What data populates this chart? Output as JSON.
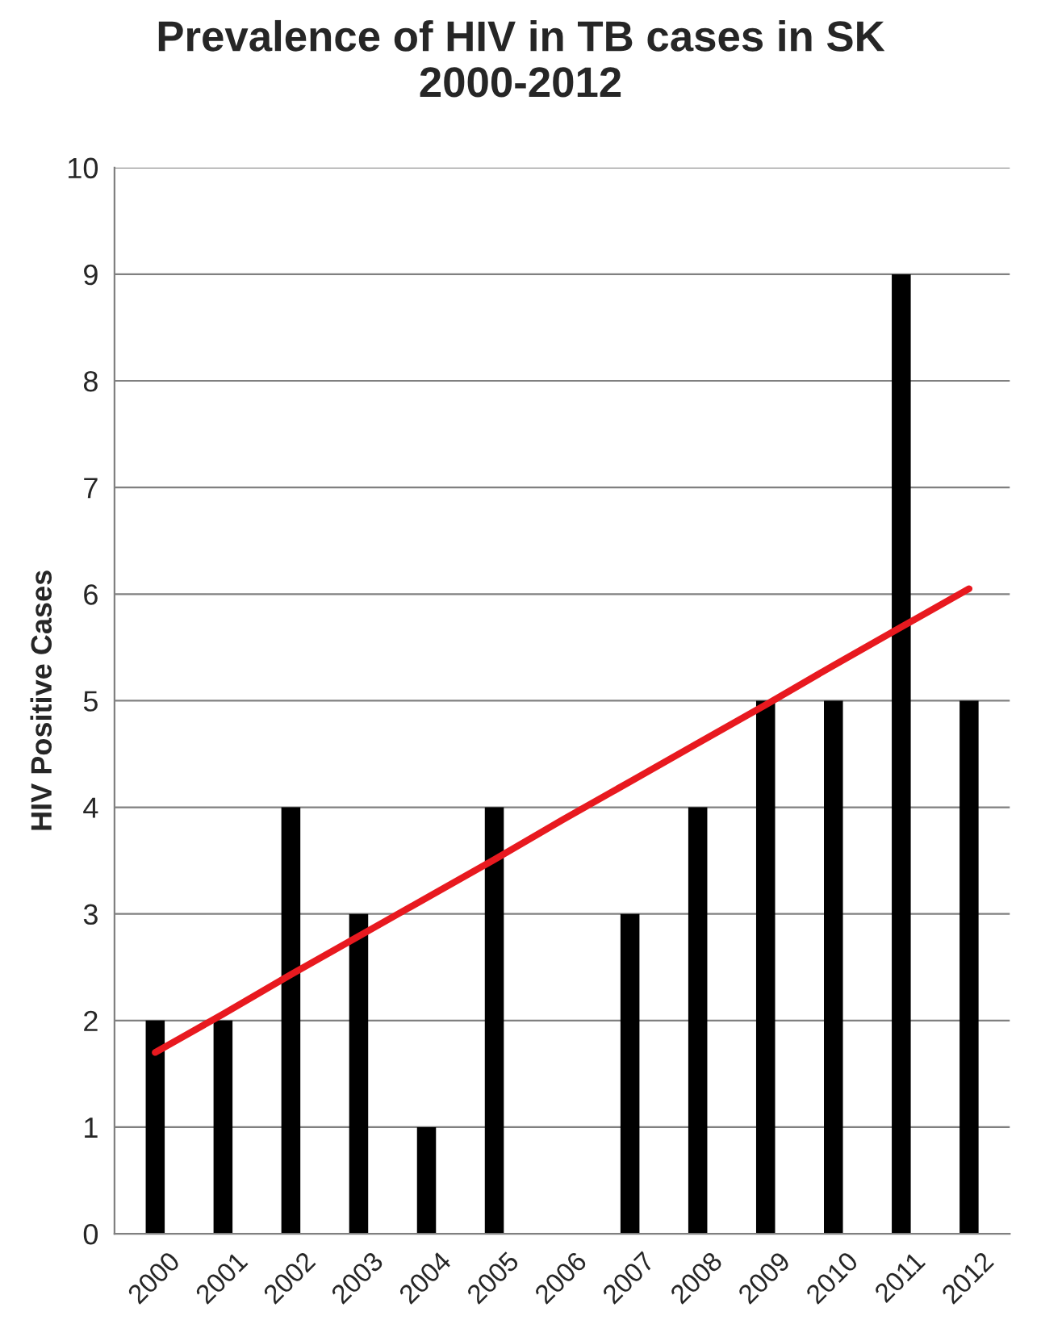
{
  "chart_data": {
    "type": "bar",
    "title": "Prevalence of HIV in TB cases in SK\n2000-2012",
    "ylabel": "HIV Positive Cases",
    "categories": [
      "2000",
      "2001",
      "2002",
      "2003",
      "2004",
      "2005",
      "2006",
      "2007",
      "2008",
      "2009",
      "2010",
      "2011",
      "2012"
    ],
    "series": [
      {
        "color": "#000000",
        "values": [
          2,
          2,
          4,
          3,
          1,
          4,
          0,
          3,
          4,
          5,
          5,
          9,
          5
        ]
      },
      {
        "type": "line",
        "color": "#e8191f",
        "values": [
          1.7,
          2.06,
          2.43,
          2.79,
          3.15,
          3.51,
          3.88,
          4.24,
          4.6,
          4.96,
          5.33,
          5.69,
          6.05
        ]
      }
    ],
    "ylim": [
      0,
      10
    ],
    "yticks": [
      0,
      1,
      2,
      3,
      4,
      5,
      6,
      7,
      8,
      9,
      10
    ],
    "grid": "y"
  }
}
